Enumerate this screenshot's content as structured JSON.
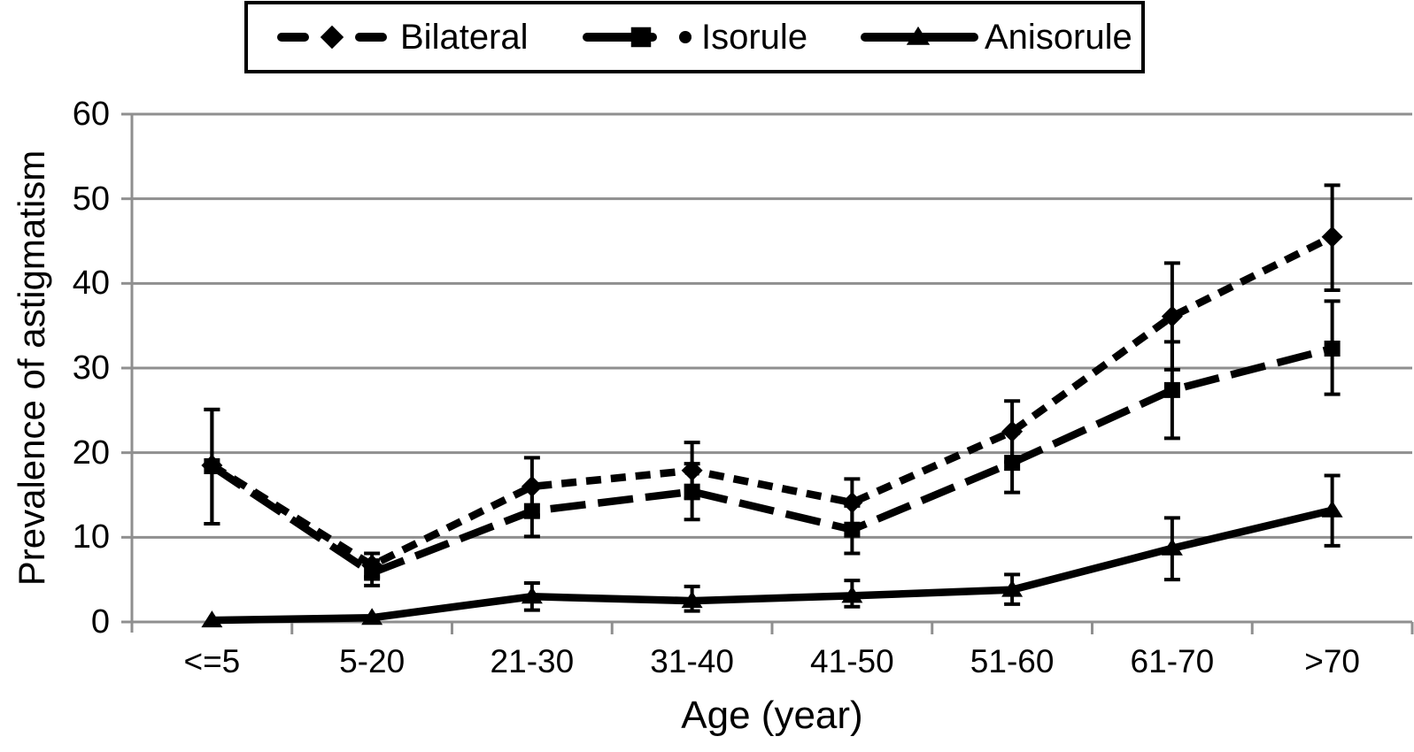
{
  "figure": {
    "background": "#ffffff",
    "axis_color": "#8f8f8f",
    "series_color": "#000000",
    "text_color": "#000000",
    "legend_border_color": "#000000"
  },
  "chart_data": {
    "type": "line",
    "title": "",
    "xlabel": "Age (year)",
    "ylabel": "Prevalence of astigmatism",
    "categories": [
      "<=5",
      "5-20",
      "21-30",
      "31-40",
      "41-50",
      "51-60",
      "61-70",
      ">70"
    ],
    "yticks": [
      0,
      10,
      20,
      30,
      40,
      50,
      60
    ],
    "ylim": [
      0,
      60
    ],
    "grid": "horizontal",
    "legend_position": "top",
    "error_bars": true,
    "series": [
      {
        "name": "Bilateral",
        "marker": "diamond",
        "line_style": "dashed",
        "values": [
          18.5,
          6.7,
          16.0,
          17.9,
          14.1,
          22.5,
          36.1,
          45.5
        ],
        "err_hi": [
          25.1,
          8.1,
          19.4,
          21.2,
          16.9,
          26.1,
          42.4,
          51.6
        ],
        "err_lo": [
          11.6,
          5.3,
          12.6,
          14.6,
          11.3,
          18.9,
          29.8,
          39.2
        ]
      },
      {
        "name": "Isorule",
        "marker": "square",
        "line_style": "long-dash",
        "values": [
          18.4,
          5.8,
          13.1,
          15.4,
          10.9,
          18.8,
          27.4,
          32.3
        ],
        "err_hi": [
          25.1,
          7.3,
          16.1,
          18.7,
          13.7,
          22.3,
          33.1,
          37.9
        ],
        "err_lo": [
          11.6,
          4.3,
          10.1,
          12.1,
          8.1,
          15.3,
          21.7,
          26.9
        ]
      },
      {
        "name": "Anisorule",
        "marker": "triangle",
        "line_style": "solid",
        "values": [
          0.2,
          0.5,
          3.0,
          2.5,
          3.1,
          3.8,
          8.7,
          13.2
        ],
        "err_hi": [
          0.2,
          0.5,
          4.6,
          4.2,
          4.9,
          5.6,
          12.3,
          17.3
        ],
        "err_lo": [
          0.2,
          0.5,
          1.4,
          1.3,
          1.8,
          2.1,
          5.0,
          9.0
        ]
      }
    ]
  }
}
